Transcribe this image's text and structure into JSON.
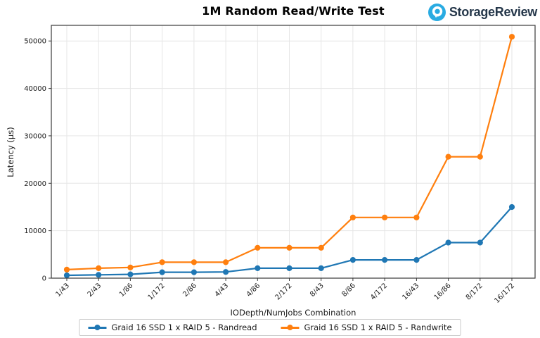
{
  "title": "1M Random Read/Write Test",
  "logo": {
    "text": "StorageReview",
    "icon": "storagereview-icon",
    "icon_color": "#29abe2",
    "text_color": "#25374a"
  },
  "chart_data": {
    "type": "line",
    "title": "1M Random Read/Write Test",
    "xlabel": "IODepth/NumJobs Combination",
    "ylabel": "Latency (µs)",
    "ylim": [
      0,
      53300
    ],
    "yticks": [
      0,
      10000,
      20000,
      30000,
      40000,
      50000
    ],
    "grid": true,
    "legend_position": "bottom",
    "marker": "circle",
    "categories": [
      "1/43",
      "2/43",
      "1/86",
      "1/172",
      "2/86",
      "4/43",
      "4/86",
      "2/172",
      "8/43",
      "8/86",
      "4/172",
      "16/43",
      "16/86",
      "8/172",
      "16/172"
    ],
    "series": [
      {
        "name": "Graid 16 SSD 1 x RAID 5 - Randread",
        "color": "#1f77b4",
        "values": [
          600,
          700,
          800,
          1250,
          1250,
          1300,
          2100,
          2100,
          2100,
          3850,
          3850,
          3850,
          7500,
          7500,
          15000
        ]
      },
      {
        "name": "Graid 16 SSD 1 x RAID 5 - Randwrite",
        "color": "#ff7f0e",
        "values": [
          1800,
          2100,
          2250,
          3350,
          3350,
          3350,
          6400,
          6400,
          6400,
          12800,
          12800,
          12800,
          25600,
          25600,
          50900
        ]
      }
    ]
  }
}
